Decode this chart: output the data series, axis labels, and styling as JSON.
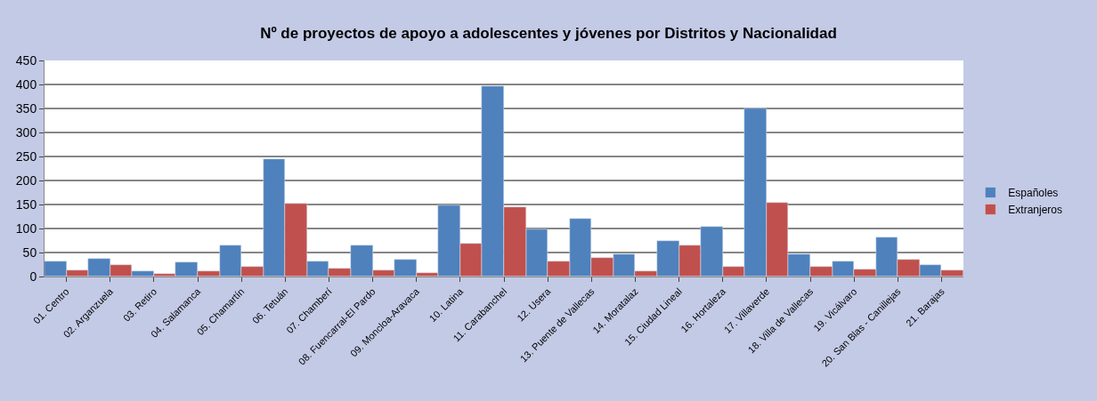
{
  "chart_data": {
    "type": "bar",
    "title": "Nº de proyectos de apoyo a adolescentes y jóvenes por Distritos y Nacionalidad",
    "categories": [
      "01. Centro",
      "02. Arganzuela",
      "03. Retiro",
      "04. Salamanca",
      "05. Chamartín",
      "06. Tetuán",
      "07. Chamberí",
      "08. Fuencarral-El Pardo",
      "09. Moncloa-Aravaca",
      "10. Latina",
      "11. Carabanchel",
      "12. Usera",
      "13. Puente de Vallecas",
      "14. Moratalaz",
      "15. Ciudad Lineal",
      "16. Hortaleza",
      "17. Villaverde",
      "18. Villa de Vallecas",
      "19. Vicálvaro",
      "20. San Blas - Canillejas",
      "21. Barajas"
    ],
    "series": [
      {
        "name": "Españoles",
        "color": "#4f81bd",
        "values": [
          31,
          37,
          11,
          29,
          64,
          244,
          32,
          65,
          35,
          149,
          397,
          99,
          120,
          47,
          75,
          104,
          350,
          46,
          31,
          82,
          24
        ]
      },
      {
        "name": "Extranjeros",
        "color": "#c0504d",
        "values": [
          13,
          24,
          6,
          12,
          21,
          151,
          16,
          13,
          8,
          68,
          145,
          31,
          38,
          11,
          65,
          20,
          153,
          21,
          15,
          36,
          13
        ]
      }
    ],
    "ylim": [
      0,
      450
    ],
    "yticks": [
      0,
      50,
      100,
      150,
      200,
      250,
      300,
      350,
      400,
      450
    ],
    "grid": "y",
    "legend": "right"
  }
}
